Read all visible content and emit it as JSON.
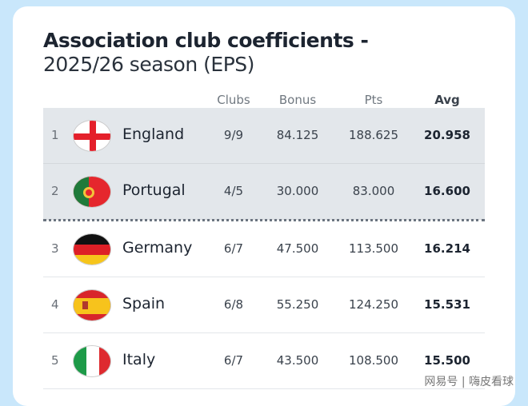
{
  "title": {
    "line1": "Association club coefficients -",
    "line2": "2025/26 season (EPS)"
  },
  "columns": [
    "Clubs",
    "Bonus",
    "Pts",
    "Avg"
  ],
  "rows": [
    {
      "rank": "1",
      "country": "England",
      "flag": "england-flag",
      "clubs": "9/9",
      "bonus": "84.125",
      "pts": "188.625",
      "avg": "20.958",
      "highlight": true
    },
    {
      "rank": "2",
      "country": "Portugal",
      "flag": "portugal-flag",
      "clubs": "4/5",
      "bonus": "30.000",
      "pts": "83.000",
      "avg": "16.600",
      "highlight": true
    },
    {
      "rank": "3",
      "country": "Germany",
      "flag": "germany-flag",
      "clubs": "6/7",
      "bonus": "47.500",
      "pts": "113.500",
      "avg": "16.214",
      "highlight": false
    },
    {
      "rank": "4",
      "country": "Spain",
      "flag": "spain-flag",
      "clubs": "6/8",
      "bonus": "55.250",
      "pts": "124.250",
      "avg": "15.531",
      "highlight": false
    },
    {
      "rank": "5",
      "country": "Italy",
      "flag": "italy-flag",
      "clubs": "6/7",
      "bonus": "43.500",
      "pts": "108.500",
      "avg": "15.500",
      "highlight": false
    }
  ],
  "watermark": "网易号 | 嗨皮看球"
}
